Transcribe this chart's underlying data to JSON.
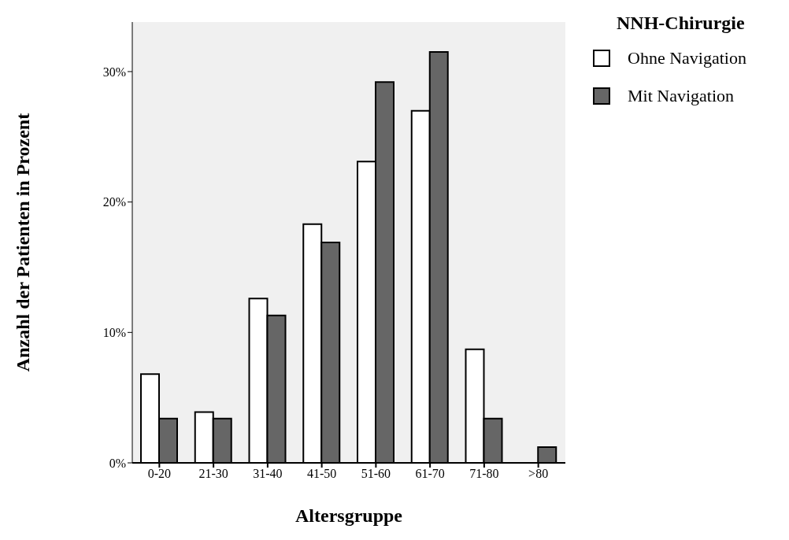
{
  "chart_data": {
    "type": "bar",
    "xlabel": "Altersgruppe",
    "ylabel": "Anzahl der Patienten in Prozent",
    "legend_title": "NNH-Chirurgie",
    "categories": [
      "0-20",
      "21-30",
      "31-40",
      "41-50",
      "51-60",
      "61-70",
      "71-80",
      ">80"
    ],
    "series": [
      {
        "name": "Ohne Navigation",
        "color": "#ffffff",
        "values": [
          6.8,
          3.9,
          12.6,
          18.3,
          23.1,
          27.0,
          8.7,
          0
        ]
      },
      {
        "name": "Mit Navigation",
        "color": "#666666",
        "values": [
          3.4,
          3.4,
          11.3,
          16.9,
          29.2,
          31.5,
          3.4,
          1.2
        ]
      }
    ],
    "ylim": [
      0,
      33.8
    ],
    "yticks": [
      {
        "value": 0,
        "label": "0%"
      },
      {
        "value": 10,
        "label": "10%"
      },
      {
        "value": 20,
        "label": "20%"
      },
      {
        "value": 30,
        "label": "30%"
      }
    ],
    "grid": false,
    "legend": "top right"
  }
}
